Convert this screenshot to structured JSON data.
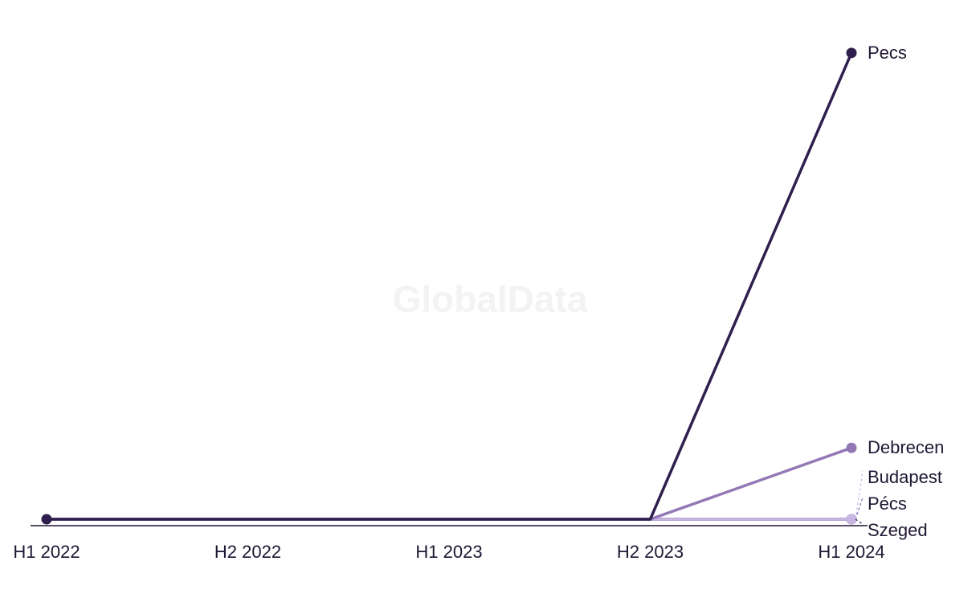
{
  "watermark": "GlobalData",
  "chart_data": {
    "type": "line",
    "title": "",
    "xlabel": "",
    "ylabel": "",
    "categories": [
      "H1 2022",
      "H2 2022",
      "H1 2023",
      "H2 2023",
      "H1 2024"
    ],
    "ylim": [
      0,
      10
    ],
    "grid": false,
    "legend": "end-of-line labels",
    "series": [
      {
        "name": "Szeged",
        "color": "#2e1f4e",
        "values": [
          0,
          0,
          0,
          0,
          0
        ]
      },
      {
        "name": "Pécs",
        "color": "#7a5fa8",
        "values": [
          0,
          0,
          0,
          0,
          0
        ]
      },
      {
        "name": "Budapest",
        "color": "#c8b6e2",
        "values": [
          0,
          0,
          0,
          0,
          0
        ]
      },
      {
        "name": "Debrecen",
        "color": "#9378b6",
        "values": [
          0,
          0,
          0,
          0,
          1.5
        ]
      },
      {
        "name": "Pecs",
        "color": "#2e1f4e",
        "values": [
          0,
          0,
          0,
          0,
          9.8
        ]
      }
    ]
  }
}
